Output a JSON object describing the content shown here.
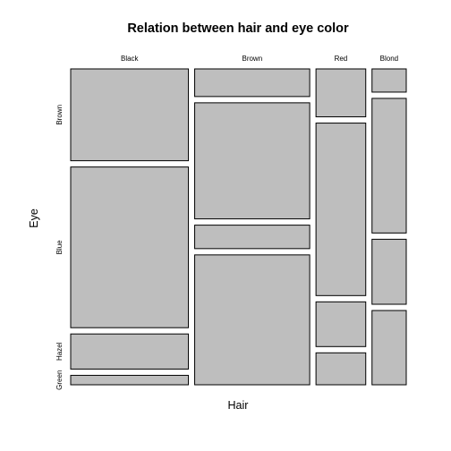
{
  "chart_data": {
    "type": "mosaic",
    "title": "Relation between hair and eye color",
    "xlabel": "Hair",
    "ylabel": "Eye",
    "x_categories": [
      "Black",
      "Brown",
      "Red",
      "Blond"
    ],
    "y_categories": [
      "Brown",
      "Blue",
      "Hazel",
      "Green"
    ],
    "counts": [
      [
        68,
        20,
        15,
        5
      ],
      [
        119,
        84,
        54,
        29
      ],
      [
        26,
        17,
        14,
        14
      ],
      [
        7,
        94,
        10,
        16
      ]
    ],
    "tile_color": "#bebebe",
    "border_color": "#000000"
  }
}
